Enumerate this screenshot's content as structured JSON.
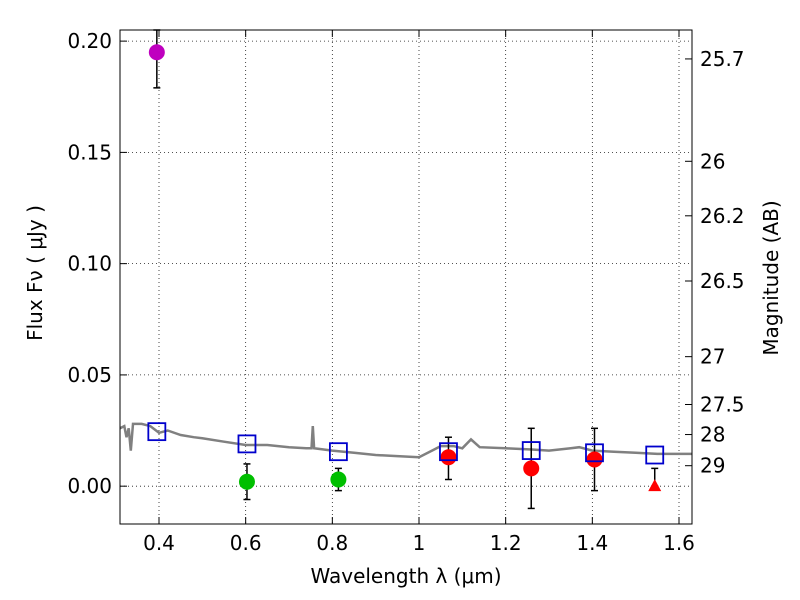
{
  "chart_data": {
    "type": "scatter",
    "xlabel": "Wavelength  λ (μm)",
    "ylabel": "Flux  Fν  ( μJy )",
    "ylabel_right": "Magnitude (AB)",
    "xlim": [
      0.31,
      1.63
    ],
    "ylim": [
      -0.017,
      0.205
    ],
    "grid": true,
    "x_ticks": [
      0.4,
      0.6,
      0.8,
      1.0,
      1.2,
      1.4,
      1.6
    ],
    "x_tick_labels": [
      "0.4",
      "0.6",
      "0.8",
      "1",
      "1.2",
      "1.4",
      "1.6"
    ],
    "y_ticks": [
      0.0,
      0.05,
      0.1,
      0.15,
      0.2
    ],
    "y_tick_labels": [
      "0.00",
      "0.05",
      "0.10",
      "0.15",
      "0.20"
    ],
    "right_ticks": [
      {
        "label": "25.7",
        "flux": 0.192
      },
      {
        "label": "26",
        "flux": 0.146
      },
      {
        "label": "26.2",
        "flux": 0.1215
      },
      {
        "label": "26.5",
        "flux": 0.0922
      },
      {
        "label": "27",
        "flux": 0.0582
      },
      {
        "label": "27.5",
        "flux": 0.0367
      },
      {
        "label": "28",
        "flux": 0.0232
      },
      {
        "label": "29",
        "flux": 0.0092
      }
    ],
    "series": [
      {
        "marker": "circle",
        "color": "#bf00bf",
        "points": [
          {
            "x": 0.395,
            "y": 0.195,
            "yerr_low": 0.179,
            "yerr_high": 0.205
          }
        ]
      },
      {
        "marker": "circle",
        "color": "#00bf00",
        "points": [
          {
            "x": 0.603,
            "y": 0.002,
            "yerr_low": -0.006,
            "yerr_high": 0.01
          },
          {
            "x": 0.814,
            "y": 0.003,
            "yerr_low": -0.002,
            "yerr_high": 0.008
          }
        ]
      },
      {
        "marker": "circle",
        "color": "#ff0000",
        "points": [
          {
            "x": 1.068,
            "y": 0.013,
            "yerr_low": 0.003,
            "yerr_high": 0.022
          },
          {
            "x": 1.259,
            "y": 0.008,
            "yerr_low": -0.01,
            "yerr_high": 0.026
          },
          {
            "x": 1.405,
            "y": 0.012,
            "yerr_low": -0.002,
            "yerr_high": 0.026
          }
        ]
      },
      {
        "marker": "triangle",
        "color": "#ff0000",
        "points": [
          {
            "x": 1.544,
            "y": 0.0,
            "yerr_low": 0.0,
            "yerr_high": 0.008
          }
        ]
      },
      {
        "marker": "square-open",
        "color": "#0000cc",
        "points": [
          {
            "x": 0.395,
            "y": 0.0245
          },
          {
            "x": 0.603,
            "y": 0.019
          },
          {
            "x": 0.814,
            "y": 0.0155
          },
          {
            "x": 1.068,
            "y": 0.0155
          },
          {
            "x": 1.259,
            "y": 0.016
          },
          {
            "x": 1.405,
            "y": 0.015
          },
          {
            "x": 1.544,
            "y": 0.014
          }
        ]
      },
      {
        "marker": "line",
        "color": "#808080",
        "points": [
          {
            "x": 0.31,
            "y": 0.026
          },
          {
            "x": 0.32,
            "y": 0.027
          },
          {
            "x": 0.325,
            "y": 0.022
          },
          {
            "x": 0.33,
            "y": 0.026
          },
          {
            "x": 0.335,
            "y": 0.016
          },
          {
            "x": 0.34,
            "y": 0.028
          },
          {
            "x": 0.36,
            "y": 0.028
          },
          {
            "x": 0.38,
            "y": 0.027
          },
          {
            "x": 0.4,
            "y": 0.024
          },
          {
            "x": 0.42,
            "y": 0.025
          },
          {
            "x": 0.45,
            "y": 0.023
          },
          {
            "x": 0.48,
            "y": 0.022
          },
          {
            "x": 0.5,
            "y": 0.0215
          },
          {
            "x": 0.55,
            "y": 0.02
          },
          {
            "x": 0.6,
            "y": 0.0185
          },
          {
            "x": 0.65,
            "y": 0.0185
          },
          {
            "x": 0.7,
            "y": 0.0175
          },
          {
            "x": 0.74,
            "y": 0.017
          },
          {
            "x": 0.752,
            "y": 0.017
          },
          {
            "x": 0.755,
            "y": 0.027
          },
          {
            "x": 0.758,
            "y": 0.017
          },
          {
            "x": 0.8,
            "y": 0.016
          },
          {
            "x": 0.85,
            "y": 0.015
          },
          {
            "x": 0.9,
            "y": 0.014
          },
          {
            "x": 0.95,
            "y": 0.0135
          },
          {
            "x": 1.0,
            "y": 0.013
          },
          {
            "x": 1.03,
            "y": 0.016
          },
          {
            "x": 1.05,
            "y": 0.018
          },
          {
            "x": 1.08,
            "y": 0.018
          },
          {
            "x": 1.1,
            "y": 0.017
          },
          {
            "x": 1.12,
            "y": 0.021
          },
          {
            "x": 1.14,
            "y": 0.0175
          },
          {
            "x": 1.2,
            "y": 0.017
          },
          {
            "x": 1.26,
            "y": 0.0165
          },
          {
            "x": 1.3,
            "y": 0.016
          },
          {
            "x": 1.35,
            "y": 0.017
          },
          {
            "x": 1.37,
            "y": 0.0175
          },
          {
            "x": 1.4,
            "y": 0.016
          },
          {
            "x": 1.45,
            "y": 0.0155
          },
          {
            "x": 1.5,
            "y": 0.015
          },
          {
            "x": 1.55,
            "y": 0.0145
          },
          {
            "x": 1.6,
            "y": 0.0145
          },
          {
            "x": 1.63,
            "y": 0.0145
          }
        ]
      }
    ]
  }
}
